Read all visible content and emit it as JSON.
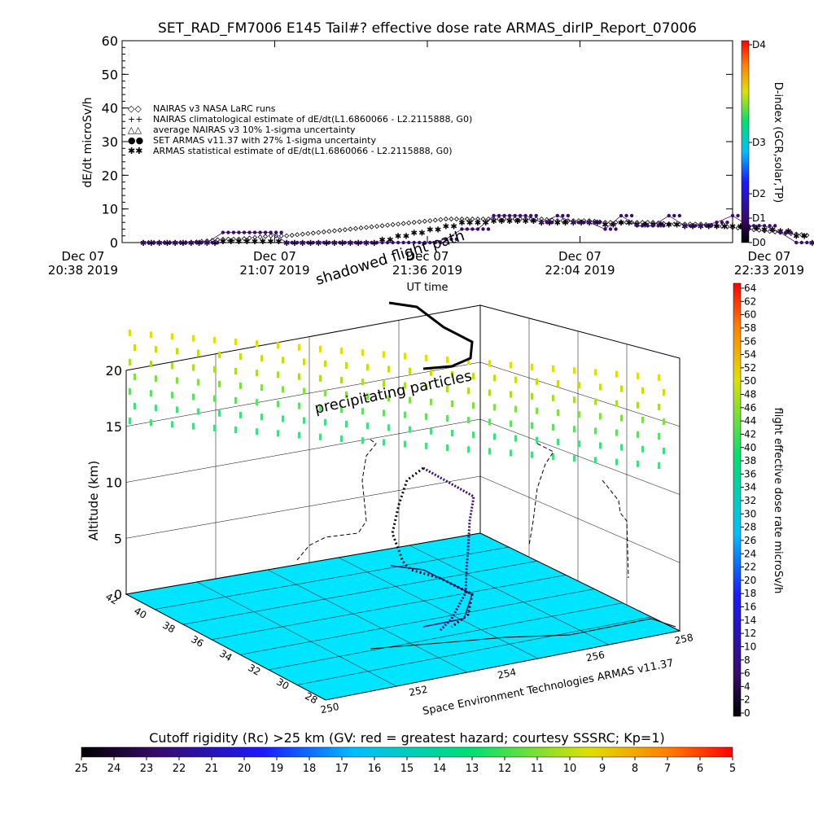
{
  "title": "SET_RAD_FM7006  E145 Tail#? effective dose rate ARMAS_dirIP_Report_07006",
  "colors": {
    "background": "#ffffff",
    "floor": "#00e5ff",
    "armas_series": "#3a0b6e",
    "path_line": "#000000"
  },
  "chart_data": [
    {
      "type": "scatter",
      "ylabel": "dE/dt  microSv/h",
      "xlabel": "UT time",
      "ylim": [
        0,
        60
      ],
      "yticks": [
        "0",
        "10",
        "20",
        "30",
        "40",
        "50",
        "60"
      ],
      "xticks": [
        {
          "date": "Dec 07",
          "time": "20:38 2019"
        },
        {
          "date": "Dec 07",
          "time": "21:07 2019"
        },
        {
          "date": "Dec 07",
          "time": "21:36 2019"
        },
        {
          "date": "Dec 07",
          "time": "22:04 2019"
        },
        {
          "date": "Dec 07",
          "time": "22:33 2019"
        }
      ],
      "legend": [
        {
          "symbol": "◇◇",
          "label": "NAIRAS v3 NASA LaRC runs"
        },
        {
          "symbol": "++",
          "label": "NAIRAS climatological estimate of dE/dt(L1.6860066 - L2.2115888, G0)"
        },
        {
          "symbol": "△△",
          "label": "average NAIRAS v3 10% 1-sigma uncertainty"
        },
        {
          "symbol": "●●",
          "label": "SET ARMAS v11.37 with 27% 1-sigma uncertainty"
        },
        {
          "symbol": "✱✱",
          "label": "ARMAS statistical estimate of dE/dt(L1.6860066 - L2.2115888, G0)"
        }
      ],
      "x_minutes": [
        0,
        3,
        6,
        9,
        12,
        15,
        18,
        21,
        24,
        27,
        30,
        33,
        36,
        39,
        42,
        45,
        48,
        51,
        54,
        57,
        60,
        63,
        66,
        69,
        72,
        75,
        78,
        81,
        84,
        87,
        90,
        93,
        96,
        99,
        102,
        105,
        108,
        111,
        114,
        117,
        120,
        123,
        126
      ],
      "series": [
        {
          "name": "SET ARMAS v11.37 with 27% 1-sigma uncertainty",
          "values": [
            0,
            0,
            0,
            0,
            0,
            3,
            3,
            3,
            3,
            0,
            0,
            0,
            0,
            0,
            0,
            0,
            0,
            0,
            0,
            1,
            4,
            4,
            8,
            8,
            8,
            6,
            8,
            6,
            6,
            4,
            8,
            5,
            5,
            8,
            5,
            5,
            6,
            8,
            5,
            5,
            3,
            0,
            0
          ]
        },
        {
          "name": "ARMAS statistical estimate of dE/dt(L1.6860066 - L2.2115888, G0)",
          "values": [
            0,
            0,
            0,
            0,
            0,
            0.5,
            0.5,
            0.5,
            0.5,
            0,
            0,
            0,
            0,
            0,
            0,
            1,
            2,
            3,
            4,
            5,
            6,
            6,
            6.5,
            6.5,
            6.5,
            6,
            6,
            6,
            6,
            5.5,
            6,
            5.5,
            5.5,
            5.5,
            5,
            5,
            5,
            5,
            4.5,
            4,
            3.5,
            2,
            0
          ]
        },
        {
          "name": "NAIRAS v3 NASA LaRC runs",
          "values": [
            0,
            0,
            0,
            0,
            0.5,
            1,
            1,
            1.5,
            2,
            2,
            2.5,
            3,
            3.5,
            4,
            4.5,
            5,
            5.5,
            6,
            6.5,
            7,
            7,
            7,
            7,
            7,
            7,
            7,
            6.5,
            6.5,
            6.5,
            6,
            6,
            6,
            6,
            5.5,
            5.5,
            5.5,
            5,
            4.5,
            4,
            3.5,
            3,
            2.5,
            2
          ]
        }
      ],
      "colorbar": {
        "label": "D-index (GCR,solar,TP)",
        "ticks": [
          "D0",
          "D1",
          "D2",
          "D3",
          "D4"
        ]
      }
    },
    {
      "type": "scatter",
      "title": "",
      "zlabel": "Altitude (km)",
      "zticks": [
        "0",
        "5",
        "10",
        "15",
        "20"
      ],
      "lat_ticks": [
        "28",
        "30",
        "32",
        "34",
        "36",
        "38",
        "40",
        "42"
      ],
      "lon_ticks": [
        "250",
        "252",
        "254",
        "256",
        "258"
      ],
      "annotations": [
        "shadowed flight path",
        "precipitating particles"
      ],
      "credit": "Space Environment Technologies ARMAS v11.37",
      "colorbar": {
        "label": "flight effective dose rate microSv/h",
        "ticks": [
          "0",
          "2",
          "4",
          "6",
          "8",
          "10",
          "12",
          "14",
          "16",
          "18",
          "20",
          "22",
          "24",
          "26",
          "28",
          "30",
          "32",
          "34",
          "36",
          "38",
          "40",
          "42",
          "44",
          "46",
          "48",
          "50",
          "52",
          "54",
          "56",
          "58",
          "60",
          "62",
          "64"
        ]
      },
      "bottom_colorbar": {
        "label": "Cutoff rigidity (Rc) >25 km (GV: red = greatest hazard; courtesy SSSRC; Kp=1)",
        "ticks": [
          "25",
          "24",
          "23",
          "22",
          "21",
          "20",
          "19",
          "18",
          "17",
          "16",
          "15",
          "14",
          "13",
          "12",
          "11",
          "10",
          "9",
          "8",
          "7",
          "6",
          "5"
        ]
      }
    }
  ]
}
